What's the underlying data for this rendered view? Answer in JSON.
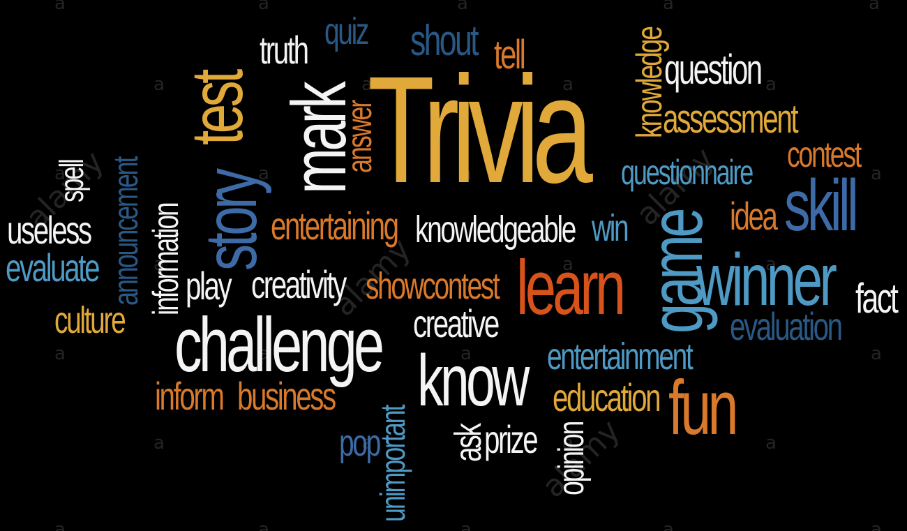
{
  "colors": {
    "background": "#000000",
    "gold": "#E0A93A",
    "orange": "#D9792B",
    "red_orange": "#D8531C",
    "white": "#F4F4F4",
    "light_blue": "#4E9AC4",
    "mid_blue": "#3D6BA8",
    "dark_blue": "#2A5885"
  },
  "words": {
    "trivia": "Trivia",
    "truth": "truth",
    "quiz": "quiz",
    "shout": "shout",
    "tell": "tell",
    "knowledge": "knowledge",
    "question": "question",
    "assessment": "assessment",
    "contest": "contest",
    "questionnaire": "questionnaire",
    "idea": "idea",
    "skill": "skill",
    "test": "test",
    "mark": "mark",
    "answer": "answer",
    "story": "story",
    "spell": "spell",
    "announcement": "announcement",
    "information": "information",
    "useless": "useless",
    "evaluate": "evaluate",
    "culture": "culture",
    "entertaining": "entertaining",
    "knowledgeable": "knowledgeable",
    "win": "win",
    "game": "game",
    "winner": "winner",
    "fact": "fact",
    "play": "play",
    "creativity": "creativity",
    "showcontest": "showcontest",
    "learn": "learn",
    "evaluation": "evaluation",
    "challenge": "challenge",
    "creative": "creative",
    "entertainment": "entertainment",
    "know": "know",
    "inform": "inform",
    "business": "business",
    "education": "education",
    "fun": "fun",
    "pop": "pop",
    "unimportant": "unimportant",
    "ask": "ask",
    "prize": "prize",
    "opinion": "opinion"
  },
  "watermark": {
    "brand": "alamy",
    "letter": "a"
  }
}
